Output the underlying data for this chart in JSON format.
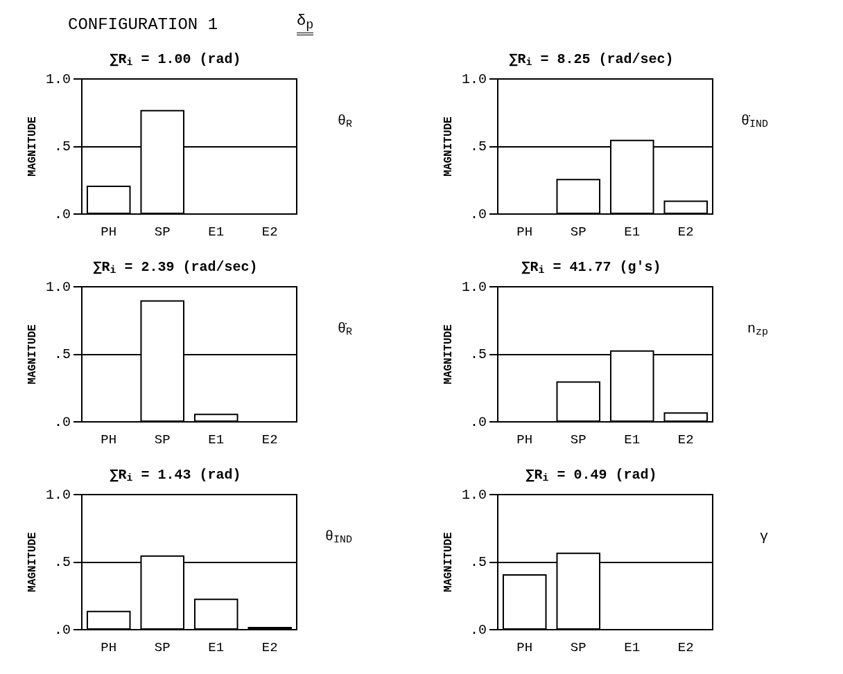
{
  "chart_data": [
    {
      "type": "bar",
      "title": "∑R$_{i}$ = 1.00 (rad)",
      "ylabel": "MAGNITUDE",
      "categories": [
        "PH",
        "SP",
        "E1",
        "E2"
      ],
      "values": [
        0.21,
        0.77,
        0,
        0
      ],
      "color": "#ffffff",
      "ylim": [
        0,
        1
      ],
      "yticks": [
        {
          "value": 0,
          "label": ".0"
        },
        {
          "value": 0.5,
          "label": ".5"
        },
        {
          "value": 1,
          "label": "1.0"
        }
      ],
      "grid": "y",
      "annotations": [
        "CONFIGURATION 1",
        "δ$_{p}$",
        "θ$_{R}$"
      ]
    },
    {
      "type": "bar",
      "title": "∑R$_{i}$ = 8.25 (rad/sec)",
      "ylabel": "MAGNITUDE",
      "categories": [
        "PH",
        "SP",
        "E1",
        "E2"
      ],
      "values": [
        0,
        0.26,
        0.55,
        0.1
      ],
      "color": "#ffffff",
      "ylim": [
        0,
        1
      ],
      "yticks": [
        {
          "value": 0,
          "label": ".0"
        },
        {
          "value": 0.5,
          "label": ".5"
        },
        {
          "value": 1,
          "label": "1.0"
        }
      ],
      "grid": "y",
      "annotations": [
        "θ̇$_{IND}$"
      ]
    },
    {
      "type": "bar",
      "title": "∑R$_{i}$ = 2.39 (rad/sec)",
      "ylabel": "MAGNITUDE",
      "categories": [
        "PH",
        "SP",
        "E1",
        "E2"
      ],
      "values": [
        0,
        0.9,
        0.06,
        0
      ],
      "color": "#ffffff",
      "ylim": [
        0,
        1
      ],
      "yticks": [
        {
          "value": 0,
          "label": ".0"
        },
        {
          "value": 0.5,
          "label": ".5"
        },
        {
          "value": 1,
          "label": "1.0"
        }
      ],
      "grid": "y",
      "annotations": [
        "θ̇$_{R}$"
      ]
    },
    {
      "type": "bar",
      "title": "∑R$_{i}$ = 41.77 (g's)",
      "ylabel": "MAGNITUDE",
      "categories": [
        "PH",
        "SP",
        "E1",
        "E2"
      ],
      "values": [
        0,
        0.3,
        0.53,
        0.07
      ],
      "color": "#ffffff",
      "ylim": [
        0,
        1
      ],
      "yticks": [
        {
          "value": 0,
          "label": ".0"
        },
        {
          "value": 0.5,
          "label": ".5"
        },
        {
          "value": 1,
          "label": "1.0"
        }
      ],
      "grid": "y",
      "annotations": [
        "n$_{z}$$_{p}$"
      ]
    },
    {
      "type": "bar",
      "title": "∑R$_{i}$ = 1.43 (rad)",
      "ylabel": "MAGNITUDE",
      "categories": [
        "PH",
        "SP",
        "E1",
        "E2"
      ],
      "values": [
        0.14,
        0.55,
        0.23,
        0.02
      ],
      "color": "#ffffff",
      "ylim": [
        0,
        1
      ],
      "yticks": [
        {
          "value": 0,
          "label": ".0"
        },
        {
          "value": 0.5,
          "label": ".5"
        },
        {
          "value": 1,
          "label": "1.0"
        }
      ],
      "grid": "y",
      "annotations": [
        "θ$_{IND}$"
      ]
    },
    {
      "type": "bar",
      "title": "∑R$_{i}$ = 0.49 (rad)",
      "ylabel": "MAGNITUDE",
      "categories": [
        "PH",
        "SP",
        "E1",
        "E2"
      ],
      "values": [
        0.41,
        0.57,
        0,
        0
      ],
      "color": "#ffffff",
      "ylim": [
        0,
        1
      ],
      "yticks": [
        {
          "value": 0,
          "label": ".0"
        },
        {
          "value": 0.5,
          "label": ".5"
        },
        {
          "value": 1,
          "label": "1.0"
        }
      ],
      "grid": "y",
      "annotations": [
        "γ"
      ]
    }
  ]
}
